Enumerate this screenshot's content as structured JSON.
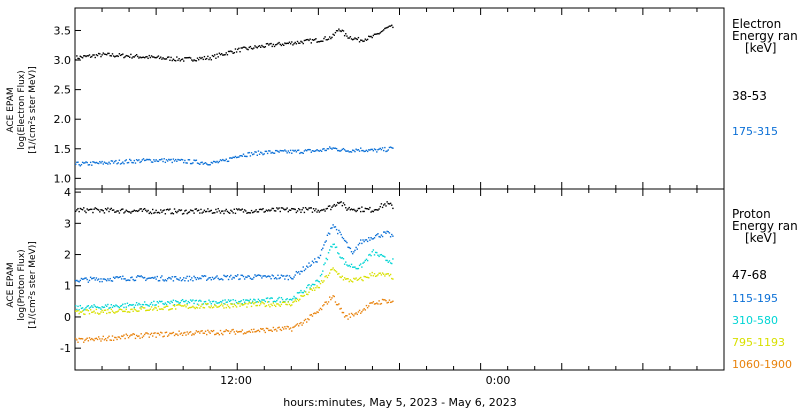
{
  "chart_data": [
    {
      "type": "scatter",
      "panel": "electron",
      "ylabel": [
        "ACE EPAM",
        "log(Electron Flux)",
        "[1/(cm²s ster MeV)]"
      ],
      "ylim": [
        0.82,
        3.88
      ],
      "yticks": [
        "1.0",
        "1.5",
        "2.0",
        "2.5",
        "3.0",
        "3.5"
      ],
      "ytick_values": [
        1.0,
        1.5,
        2.0,
        2.5,
        3.0,
        3.5
      ],
      "legend_title": [
        "Electron",
        "Energy ran",
        "[keV]"
      ],
      "series": [
        {
          "name": "38-53",
          "color": "#000000",
          "x": [
            0,
            2,
            4,
            6,
            8,
            10,
            11,
            12,
            14,
            16,
            18,
            19,
            19.5,
            20,
            21,
            22,
            23,
            23.5
          ],
          "y": [
            3.05,
            3.1,
            3.08,
            3.05,
            3.02,
            3.05,
            3.12,
            3.18,
            3.25,
            3.3,
            3.35,
            3.4,
            3.55,
            3.42,
            3.35,
            3.4,
            3.55,
            3.57
          ]
        },
        {
          "name": "175-315",
          "color": "#0a6fd6",
          "x": [
            0,
            2,
            4,
            6,
            8,
            10,
            11,
            12,
            14,
            16,
            18,
            19,
            20,
            21,
            22,
            23,
            23.5
          ],
          "y": [
            1.25,
            1.27,
            1.3,
            1.32,
            1.3,
            1.27,
            1.3,
            1.4,
            1.45,
            1.46,
            1.48,
            1.52,
            1.48,
            1.5,
            1.48,
            1.5,
            1.52
          ]
        }
      ]
    },
    {
      "type": "scatter",
      "panel": "proton",
      "ylabel": [
        "ACE EPAM",
        "log(Proton Flux)",
        "[1/(cm²s ster MeV)]"
      ],
      "ylim": [
        -1.7,
        4.1
      ],
      "yticks": [
        "-1",
        "0",
        "1",
        "2",
        "3",
        "4"
      ],
      "ytick_values": [
        -1,
        0,
        1,
        2,
        3,
        4
      ],
      "legend_title": [
        "Proton",
        "Energy ran",
        "[keV]"
      ],
      "series": [
        {
          "name": "47-68",
          "color": "#000000",
          "x": [
            0,
            4,
            8,
            12,
            16,
            18,
            19,
            19.5,
            20,
            22,
            23,
            23.5
          ],
          "y": [
            3.45,
            3.42,
            3.4,
            3.42,
            3.45,
            3.45,
            3.55,
            3.75,
            3.5,
            3.45,
            3.65,
            3.55
          ]
        },
        {
          "name": "115-195",
          "color": "#0a6fd6",
          "x": [
            0,
            4,
            8,
            12,
            16,
            17,
            18,
            19,
            20,
            20.5,
            21,
            22,
            23,
            23.5
          ],
          "y": [
            1.2,
            1.27,
            1.25,
            1.3,
            1.3,
            1.6,
            1.9,
            3.0,
            2.4,
            2.0,
            2.4,
            2.6,
            2.7,
            2.6
          ]
        },
        {
          "name": "310-580",
          "color": "#00d4d4",
          "x": [
            0,
            4,
            8,
            12,
            16,
            17,
            18,
            19,
            20,
            21,
            22,
            23,
            23.5
          ],
          "y": [
            0.3,
            0.4,
            0.5,
            0.5,
            0.6,
            0.9,
            1.2,
            2.4,
            1.7,
            1.6,
            2.1,
            1.85,
            1.8
          ]
        },
        {
          "name": "795-1193",
          "color": "#d8e000",
          "x": [
            0,
            4,
            8,
            12,
            16,
            17,
            18,
            19,
            20,
            21,
            22,
            23,
            23.5
          ],
          "y": [
            0.15,
            0.25,
            0.35,
            0.4,
            0.45,
            0.75,
            1.0,
            1.55,
            1.2,
            1.2,
            1.4,
            1.35,
            1.3
          ]
        },
        {
          "name": "1060-1900",
          "color": "#e8820c",
          "x": [
            0,
            4,
            8,
            12,
            16,
            17,
            18,
            19,
            20,
            21,
            22,
            23,
            23.5
          ],
          "y": [
            -0.75,
            -0.6,
            -0.5,
            -0.45,
            -0.35,
            -0.1,
            0.2,
            0.7,
            0.0,
            0.2,
            0.45,
            0.55,
            0.5
          ]
        }
      ]
    }
  ],
  "x_axis": {
    "label": "hours:minutes, May  5, 2023 - May  6, 2023",
    "range_hours": [
      0,
      48
    ],
    "ticks": [
      {
        "hours": 12,
        "label": "12:00"
      },
      {
        "hours": 24,
        "label": "0:00"
      }
    ]
  }
}
